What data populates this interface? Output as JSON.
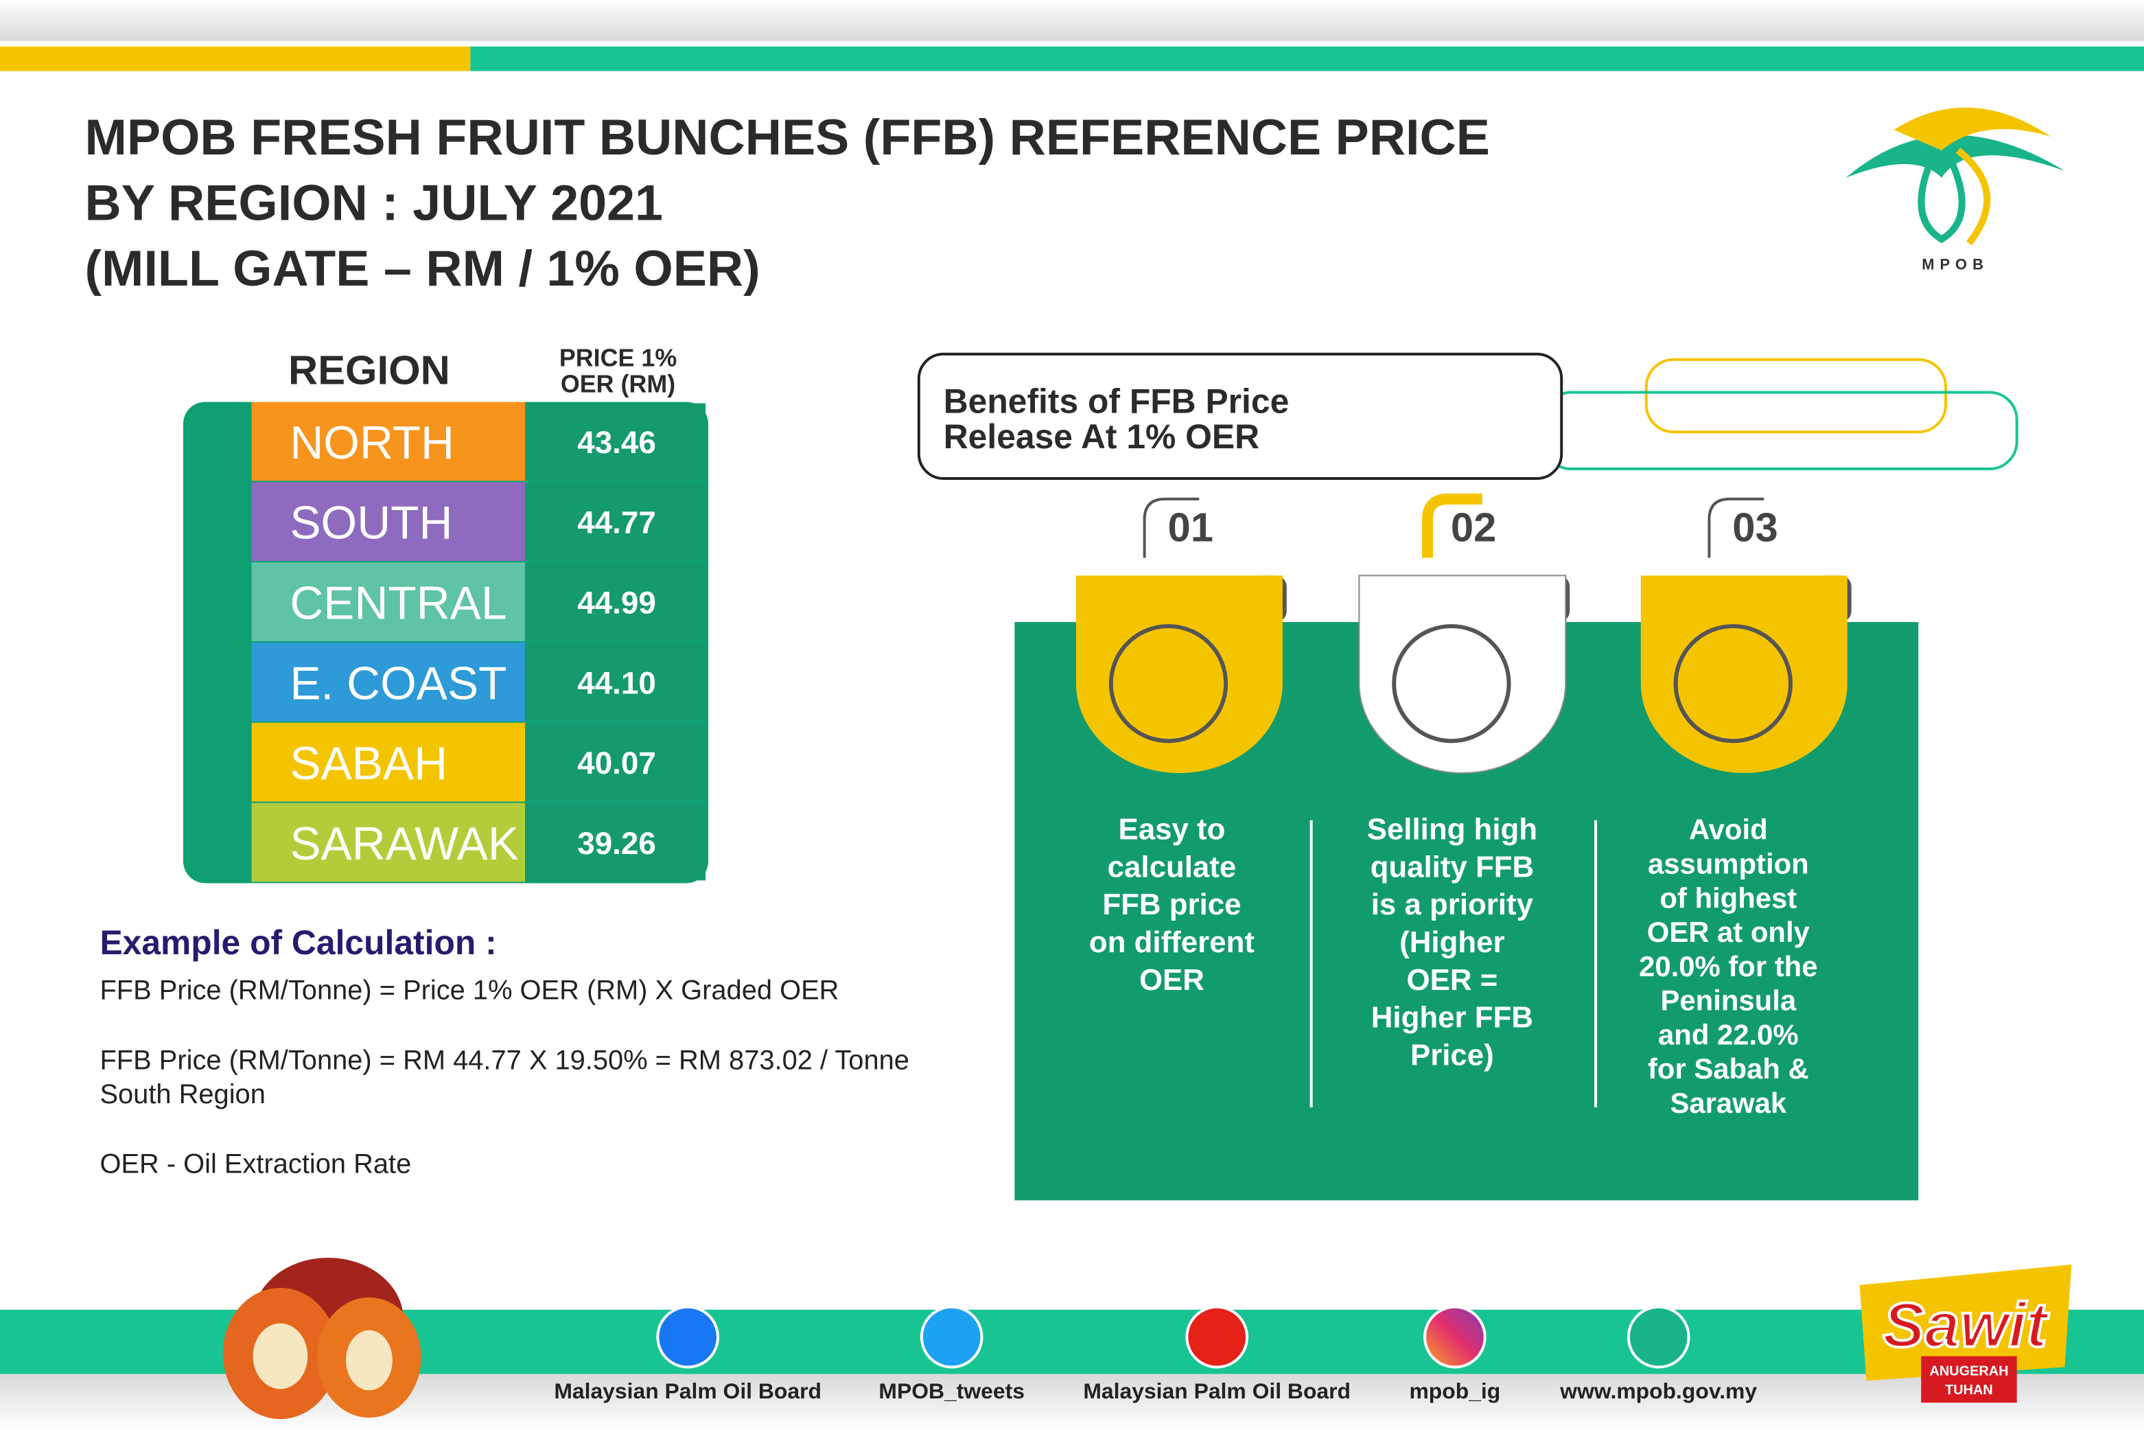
{
  "header": {
    "title_lines": [
      "MPOB FRESH FRUIT BUNCHES (FFB) REFERENCE PRICE",
      "BY REGION : JULY 2021",
      "(MILL GATE – RM / 1% OER)"
    ],
    "logo_text": "MPOB"
  },
  "table": {
    "region_header": "REGION",
    "price_header_lines": [
      "PRICE 1%",
      "OER (RM)"
    ],
    "rows": [
      [
        "NORTH",
        "43.46"
      ],
      [
        "SOUTH",
        "44.77"
      ],
      [
        "CENTRAL",
        "44.99"
      ],
      [
        "E. COAST",
        "44.10"
      ],
      [
        "SABAH",
        "40.07"
      ],
      [
        "SARAWAK",
        "39.26"
      ]
    ]
  },
  "calculation": {
    "title": "Example of Calculation :",
    "lines": [
      "FFB Price (RM/Tonne)  = Price 1% OER (RM) X Graded OER",
      "FFB Price (RM/Tonne)  = RM 44.77 X 19.50% = RM 873.02 / Tonne",
      "South Region",
      "OER - Oil Extraction Rate"
    ]
  },
  "benefits": {
    "title_lines": [
      "Benefits of FFB Price",
      "Release At 1% OER"
    ],
    "items": [
      {
        "number": "01",
        "text_lines": [
          "Easy to",
          "calculate",
          "FFB price",
          "on different",
          "OER"
        ]
      },
      {
        "number": "02",
        "text_lines": [
          "Selling high",
          "quality FFB",
          "is a priority",
          "(Higher",
          "OER =",
          "Higher FFB",
          "Price)"
        ]
      },
      {
        "number": "03",
        "text_lines": [
          "Avoid",
          "assumption",
          "of highest",
          "OER at only",
          "20.0% for the",
          "Peninsula",
          "and 22.0%",
          "for Sabah &",
          "Sarawak"
        ]
      }
    ]
  },
  "footer": {
    "social": [
      "Malaysian Palm Oil Board",
      "MPOB_tweets",
      "Malaysian Palm Oil Board",
      "mpob_ig",
      "www.mpob.gov.my"
    ],
    "badge_lines": [
      "Sawit",
      "ANUGERAH",
      "TUHAN"
    ]
  }
}
